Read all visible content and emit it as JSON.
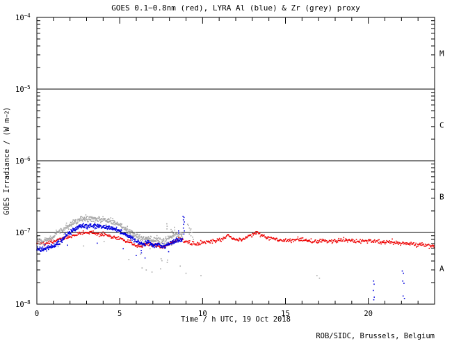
{
  "chart": {
    "title": "GOES 0.1−0.8nm (red), LYRA Al (blue) & Zr (grey) proxy",
    "xlabel": "Time / h UTC, 19 Oct 2018",
    "ylabel": {
      "prefix": "GOES Irradiance / (W m",
      "exponent": "−2",
      "suffix": ")"
    },
    "credit": "ROB/SIDC, Brussels, Belgium"
  },
  "chart_data": {
    "type": "scatter",
    "title": "GOES 0.1−0.8nm (red), LYRA Al (blue) & Zr (grey) proxy",
    "xlabel": "Time / h UTC, 19 Oct 2018",
    "ylabel": "GOES Irradiance / (W m^-2)",
    "grid": false,
    "x_axis": {
      "min": 0,
      "max": 24,
      "major_tick_step": 5,
      "minor_tick_step": 1,
      "tick_labels": [
        "0",
        "5",
        "10",
        "15",
        "20"
      ]
    },
    "y_axis": {
      "scale": "log",
      "min_exp": -8,
      "max_exp": -4,
      "tick_exponents": [
        -4,
        -5,
        -6,
        -7,
        -8
      ]
    },
    "flare_class_lines": [
      1e-05,
      1e-06,
      1e-07
    ],
    "flare_class_labels": [
      {
        "label": "M",
        "value": 3.162e-05
      },
      {
        "label": "C",
        "value": 3.162e-06
      },
      {
        "label": "B",
        "value": 3.162e-07
      },
      {
        "label": "A",
        "value": 3.162e-08
      }
    ],
    "colors": {
      "goes": "#ee0000",
      "lyra_al": "#0000dd",
      "lyra_zr": "#a8a8a8",
      "axis": "#000000"
    },
    "series": [
      {
        "name": "GOES 0.1-0.8nm (red)",
        "color": "#ee0000",
        "cadence_h": 0.0333,
        "sigma_log": 0.014,
        "outlier_prob": 0.0,
        "outlier_depth": 0.0,
        "keyframes": [
          [
            0.0,
            7.4e-08
          ],
          [
            0.4,
            6.9e-08
          ],
          [
            0.8,
            7.2e-08
          ],
          [
            1.2,
            7.8e-08
          ],
          [
            1.6,
            8.2e-08
          ],
          [
            2.0,
            8.8e-08
          ],
          [
            2.4,
            9.4e-08
          ],
          [
            2.8,
            9.9e-08
          ],
          [
            3.2,
            1e-07
          ],
          [
            3.6,
            9.7e-08
          ],
          [
            4.0,
            9.3e-08
          ],
          [
            4.5,
            8.8e-08
          ],
          [
            5.0,
            8.2e-08
          ],
          [
            5.5,
            7.4e-08
          ],
          [
            5.9,
            6.6e-08
          ],
          [
            6.3,
            6.4e-08
          ],
          [
            6.7,
            6.9e-08
          ],
          [
            7.1,
            6.7e-08
          ],
          [
            7.5,
            6.2e-08
          ],
          [
            7.9,
            6.8e-08
          ],
          [
            8.3,
            7.6e-08
          ],
          [
            8.6,
            8.3e-08
          ],
          [
            8.9,
            7.6e-08
          ],
          [
            9.3,
            7.1e-08
          ],
          [
            9.8,
            6.9e-08
          ],
          [
            10.3,
            7.3e-08
          ],
          [
            10.8,
            7.6e-08
          ],
          [
            11.2,
            8e-08
          ],
          [
            11.5,
            9.2e-08
          ],
          [
            11.8,
            8.2e-08
          ],
          [
            12.2,
            7.9e-08
          ],
          [
            12.6,
            8.3e-08
          ],
          [
            13.0,
            9.4e-08
          ],
          [
            13.3,
            9.8e-08
          ],
          [
            13.7,
            9e-08
          ],
          [
            14.2,
            8.2e-08
          ],
          [
            14.8,
            7.8e-08
          ],
          [
            15.3,
            7.6e-08
          ],
          [
            15.8,
            8e-08
          ],
          [
            16.3,
            7.7e-08
          ],
          [
            16.8,
            7.4e-08
          ],
          [
            17.3,
            7.7e-08
          ],
          [
            17.8,
            7.4e-08
          ],
          [
            18.3,
            7.8e-08
          ],
          [
            18.8,
            7.9e-08
          ],
          [
            19.3,
            7.5e-08
          ],
          [
            19.8,
            7.7e-08
          ],
          [
            20.3,
            7.6e-08
          ],
          [
            20.8,
            7.3e-08
          ],
          [
            21.3,
            7.5e-08
          ],
          [
            21.8,
            7.2e-08
          ],
          [
            22.3,
            7e-08
          ],
          [
            22.8,
            6.9e-08
          ],
          [
            23.3,
            6.7e-08
          ],
          [
            23.7,
            6.6e-08
          ],
          [
            24.0,
            6.4e-08
          ]
        ]
      },
      {
        "name": "LYRA Al proxy (blue)",
        "color": "#0000dd",
        "cadence_h": 0.0167,
        "sigma_log": 0.016,
        "outlier_prob": 0.012,
        "outlier_depth": 0.25,
        "keyframes": [
          [
            0.0,
            6e-08
          ],
          [
            0.3,
            5.8e-08
          ],
          [
            0.6,
            6e-08
          ],
          [
            1.0,
            6.4e-08
          ],
          [
            1.4,
            7.4e-08
          ],
          [
            1.8,
            9.2e-08
          ],
          [
            2.2,
            1.1e-07
          ],
          [
            2.6,
            1.2e-07
          ],
          [
            3.0,
            1.24e-07
          ],
          [
            3.4,
            1.25e-07
          ],
          [
            3.8,
            1.22e-07
          ],
          [
            4.2,
            1.18e-07
          ],
          [
            4.6,
            1.15e-07
          ],
          [
            5.0,
            1.05e-07
          ],
          [
            5.4,
            9.4e-08
          ],
          [
            5.8,
            8.2e-08
          ],
          [
            6.1,
            7.4e-08
          ],
          [
            6.4,
            6.8e-08
          ],
          [
            6.7,
            7.3e-08
          ],
          [
            7.0,
            6.6e-08
          ],
          [
            7.3,
            6.9e-08
          ],
          [
            7.6,
            6.3e-08
          ],
          [
            7.9,
            6.9e-08
          ],
          [
            8.2,
            7.3e-08
          ],
          [
            8.5,
            7.7e-08
          ],
          [
            8.8,
            8e-08
          ]
        ]
      },
      {
        "name": "LYRA Zr proxy (grey)",
        "color": "#a8a8a8",
        "cadence_h": 0.0167,
        "sigma_log": 0.022,
        "outlier_prob": 0.02,
        "outlier_depth": 0.35,
        "keyframes": [
          [
            0.0,
            7.9e-08
          ],
          [
            0.3,
            7.4e-08
          ],
          [
            0.6,
            7.7e-08
          ],
          [
            1.0,
            8.6e-08
          ],
          [
            1.2,
            1.02e-07
          ],
          [
            1.5,
            1.06e-07
          ],
          [
            1.8,
            1.15e-07
          ],
          [
            2.2,
            1.35e-07
          ],
          [
            2.6,
            1.5e-07
          ],
          [
            3.0,
            1.55e-07
          ],
          [
            3.4,
            1.57e-07
          ],
          [
            3.8,
            1.52e-07
          ],
          [
            4.2,
            1.47e-07
          ],
          [
            4.6,
            1.42e-07
          ],
          [
            5.0,
            1.28e-07
          ],
          [
            5.4,
            1.12e-07
          ],
          [
            5.8,
            9.6e-08
          ],
          [
            6.1,
            8.6e-08
          ],
          [
            6.4,
            8e-08
          ],
          [
            6.7,
            8.4e-08
          ],
          [
            7.0,
            7.7e-08
          ],
          [
            7.3,
            8e-08
          ],
          [
            7.6,
            7.4e-08
          ],
          [
            7.9,
            8.2e-08
          ],
          [
            8.2,
            9e-08
          ],
          [
            8.5,
            9.6e-08
          ],
          [
            8.8,
            9.2e-08
          ]
        ]
      }
    ],
    "scatter_clusters": [
      {
        "name": "lyra-al-spike-0850utc",
        "color": "#0000dd",
        "points": [
          [
            8.82,
            1.68e-07
          ],
          [
            8.84,
            1.5e-07
          ],
          [
            8.88,
            1.62e-07
          ],
          [
            8.9,
            1.4e-07
          ],
          [
            8.86,
            1.3e-07
          ],
          [
            8.84,
            1.15e-07
          ],
          [
            8.9,
            1.05e-07
          ],
          [
            8.87,
            9.5e-08
          ],
          [
            8.55,
            1.05e-07
          ],
          [
            8.56,
            9.8e-08
          ]
        ]
      },
      {
        "name": "lyra-zr-spikes-0750-0820utc",
        "color": "#a8a8a8",
        "points": [
          [
            7.84,
            1.32e-07
          ],
          [
            7.86,
            1.22e-07
          ],
          [
            7.85,
            1.12e-07
          ],
          [
            8.1,
            1.1e-07
          ],
          [
            8.12,
            1.02e-07
          ],
          [
            8.3,
            1.18e-07
          ],
          [
            8.32,
            1.08e-07
          ]
        ]
      },
      {
        "name": "lyra-zr-cluster-0910-0930utc",
        "color": "#a8a8a8",
        "points": [
          [
            9.1,
            1.3e-07
          ],
          [
            9.15,
            1.25e-07
          ],
          [
            9.2,
            1.15e-07
          ],
          [
            9.25,
            1.08e-07
          ],
          [
            9.3,
            1.12e-07
          ],
          [
            9.35,
            1e-07
          ],
          [
            9.2,
            9.5e-08
          ],
          [
            9.3,
            9e-08
          ],
          [
            9.4,
            8.6e-08
          ],
          [
            9.45,
            8e-08
          ]
        ]
      },
      {
        "name": "lyra-zr-stray-low-dots",
        "color": "#a8a8a8",
        "points": [
          [
            5.55,
            4.2e-08
          ],
          [
            6.35,
            3.2e-08
          ],
          [
            6.6,
            3e-08
          ],
          [
            6.95,
            2.8e-08
          ],
          [
            7.5,
            4.3e-08
          ],
          [
            8.65,
            3.4e-08
          ],
          [
            9.0,
            2.7e-08
          ],
          [
            9.9,
            2.5e-08
          ],
          [
            16.9,
            2.5e-08
          ],
          [
            17.05,
            2.3e-08
          ]
        ]
      },
      {
        "name": "lyra-al-stray-low-dots",
        "color": "#0000dd",
        "points": [
          [
            6.3,
            5.6e-08
          ],
          [
            6.31,
            5.2e-08
          ],
          [
            7.95,
            5.4e-08
          ]
        ]
      },
      {
        "name": "lyra-al-dots-2020utc",
        "color": "#0000dd",
        "points": [
          [
            20.32,
            2.1e-08
          ],
          [
            20.35,
            1.9e-08
          ],
          [
            20.3,
            1.55e-08
          ],
          [
            20.36,
            1.25e-08
          ],
          [
            20.33,
            1.15e-08
          ]
        ]
      },
      {
        "name": "lyra-al-dots-2205utc",
        "color": "#0000dd",
        "points": [
          [
            22.05,
            2.9e-08
          ],
          [
            22.12,
            2.7e-08
          ],
          [
            22.08,
            2.1e-08
          ],
          [
            22.15,
            1.95e-08
          ],
          [
            22.1,
            1.3e-08
          ],
          [
            22.18,
            1.2e-08
          ]
        ]
      }
    ]
  }
}
